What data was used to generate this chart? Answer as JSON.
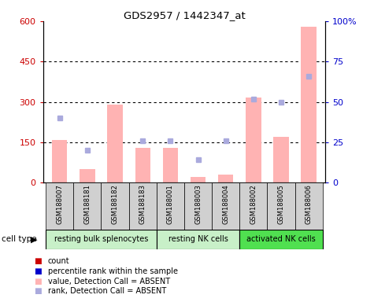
{
  "title": "GDS2957 / 1442347_at",
  "samples": [
    "GSM188007",
    "GSM188181",
    "GSM188182",
    "GSM188183",
    "GSM188001",
    "GSM188003",
    "GSM188004",
    "GSM188002",
    "GSM188005",
    "GSM188006"
  ],
  "cell_types": [
    {
      "label": "resting bulk splenocytes",
      "start": 0,
      "end": 3,
      "color": "#c8f0c8"
    },
    {
      "label": "resting NK cells",
      "start": 4,
      "end": 6,
      "color": "#c8f0c8"
    },
    {
      "label": "activated NK cells",
      "start": 7,
      "end": 9,
      "color": "#50e050"
    }
  ],
  "bar_values_absent": [
    160,
    50,
    290,
    130,
    130,
    20,
    30,
    315,
    170,
    580
  ],
  "rank_values_absent": [
    240,
    120,
    null,
    155,
    155,
    85,
    155,
    310,
    300,
    395
  ],
  "left_ylim": [
    0,
    600
  ],
  "left_yticks": [
    0,
    150,
    300,
    450,
    600
  ],
  "left_yticklabels": [
    "0",
    "150",
    "300",
    "450",
    "600"
  ],
  "right_yticklabels": [
    "0",
    "25",
    "50",
    "75",
    "100%"
  ],
  "bar_color": "#ffb3b3",
  "rank_color": "#aaaadd",
  "left_tick_color": "#cc0000",
  "right_tick_color": "#0000cc",
  "bg_color": "#ffffff",
  "sample_bg_color": "#d0d0d0",
  "legend_items": [
    {
      "color": "#cc0000",
      "label": "count"
    },
    {
      "color": "#0000cc",
      "label": "percentile rank within the sample"
    },
    {
      "color": "#ffb3b3",
      "label": "value, Detection Call = ABSENT"
    },
    {
      "color": "#aaaadd",
      "label": "rank, Detection Call = ABSENT"
    }
  ]
}
